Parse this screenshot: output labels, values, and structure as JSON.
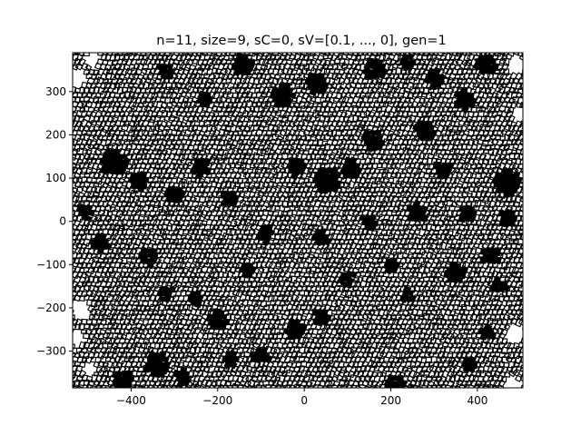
{
  "chart_data": {
    "type": "tiling",
    "title": "n=11, size=9, sC=0, sV=[0.1, ..., 0], gen=1",
    "xlabel": "",
    "ylabel": "",
    "xlim": [
      -535,
      505
    ],
    "ylim": [
      -385,
      390
    ],
    "xticks": [
      -400,
      -200,
      0,
      200,
      400
    ],
    "yticks": [
      -300,
      -200,
      -100,
      0,
      100,
      200,
      300
    ],
    "xtick_labels": [
      "−400",
      "−200",
      "0",
      "200",
      "400"
    ],
    "ytick_labels": [
      "−300",
      "−200",
      "−100",
      "0",
      "100",
      "200",
      "300"
    ],
    "grid": false,
    "tiling": {
      "symmetry_n": 11,
      "edge_color": "#000000",
      "face_color": "#ffffff",
      "filled_color": "#000000",
      "filled_regions": [
        {
          "x": -440,
          "y": 135,
          "r": 30
        },
        {
          "x": -380,
          "y": 95,
          "r": 22
        },
        {
          "x": -300,
          "y": 60,
          "r": 18
        },
        {
          "x": -240,
          "y": 125,
          "r": 20
        },
        {
          "x": -175,
          "y": 50,
          "r": 16
        },
        {
          "x": -505,
          "y": 20,
          "r": 18
        },
        {
          "x": -470,
          "y": -50,
          "r": 20
        },
        {
          "x": -360,
          "y": -80,
          "r": 22
        },
        {
          "x": -320,
          "y": -165,
          "r": 18
        },
        {
          "x": -250,
          "y": -180,
          "r": 16
        },
        {
          "x": -200,
          "y": -230,
          "r": 22
        },
        {
          "x": -340,
          "y": -330,
          "r": 28
        },
        {
          "x": -280,
          "y": -360,
          "r": 20
        },
        {
          "x": -420,
          "y": -370,
          "r": 24
        },
        {
          "x": -170,
          "y": -320,
          "r": 18
        },
        {
          "x": -100,
          "y": -310,
          "r": 20
        },
        {
          "x": -20,
          "y": -250,
          "r": 22
        },
        {
          "x": 40,
          "y": -220,
          "r": 18
        },
        {
          "x": -130,
          "y": -115,
          "r": 16
        },
        {
          "x": -90,
          "y": -30,
          "r": 18
        },
        {
          "x": -20,
          "y": 125,
          "r": 20
        },
        {
          "x": 50,
          "y": 95,
          "r": 30
        },
        {
          "x": 110,
          "y": 120,
          "r": 22
        },
        {
          "x": 160,
          "y": 190,
          "r": 24
        },
        {
          "x": 280,
          "y": 210,
          "r": 22
        },
        {
          "x": 320,
          "y": 120,
          "r": 18
        },
        {
          "x": 260,
          "y": 20,
          "r": 22
        },
        {
          "x": 150,
          "y": 0,
          "r": 18
        },
        {
          "x": 40,
          "y": -40,
          "r": 16
        },
        {
          "x": 100,
          "y": -130,
          "r": 18
        },
        {
          "x": 200,
          "y": -100,
          "r": 16
        },
        {
          "x": 240,
          "y": -170,
          "r": 14
        },
        {
          "x": 350,
          "y": -120,
          "r": 22
        },
        {
          "x": 430,
          "y": -80,
          "r": 20
        },
        {
          "x": 470,
          "y": 90,
          "r": 30
        },
        {
          "x": 450,
          "y": -150,
          "r": 18
        },
        {
          "x": 420,
          "y": -260,
          "r": 16
        },
        {
          "x": 380,
          "y": -330,
          "r": 18
        },
        {
          "x": 210,
          "y": -380,
          "r": 24
        },
        {
          "x": -50,
          "y": 290,
          "r": 24
        },
        {
          "x": 30,
          "y": 320,
          "r": 22
        },
        {
          "x": -140,
          "y": 360,
          "r": 22
        },
        {
          "x": 160,
          "y": 350,
          "r": 24
        },
        {
          "x": 240,
          "y": 370,
          "r": 16
        },
        {
          "x": 300,
          "y": 330,
          "r": 20
        },
        {
          "x": 370,
          "y": 280,
          "r": 22
        },
        {
          "x": 420,
          "y": 360,
          "r": 22
        },
        {
          "x": -230,
          "y": 285,
          "r": 16
        },
        {
          "x": -320,
          "y": 350,
          "r": 18
        },
        {
          "x": 470,
          "y": 10,
          "r": 18
        },
        {
          "x": 380,
          "y": 20,
          "r": 20
        }
      ],
      "blank_regions": [
        {
          "x": -525,
          "y": 330,
          "r": 22
        },
        {
          "x": -490,
          "y": 375,
          "r": 18
        },
        {
          "x": -515,
          "y": -205,
          "r": 22
        },
        {
          "x": -525,
          "y": -270,
          "r": 20
        },
        {
          "x": -495,
          "y": -340,
          "r": 16
        },
        {
          "x": 490,
          "y": 360,
          "r": 20
        },
        {
          "x": 500,
          "y": 250,
          "r": 18
        },
        {
          "x": 480,
          "y": -380,
          "r": 22
        },
        {
          "x": 490,
          "y": -260,
          "r": 24
        }
      ]
    }
  }
}
